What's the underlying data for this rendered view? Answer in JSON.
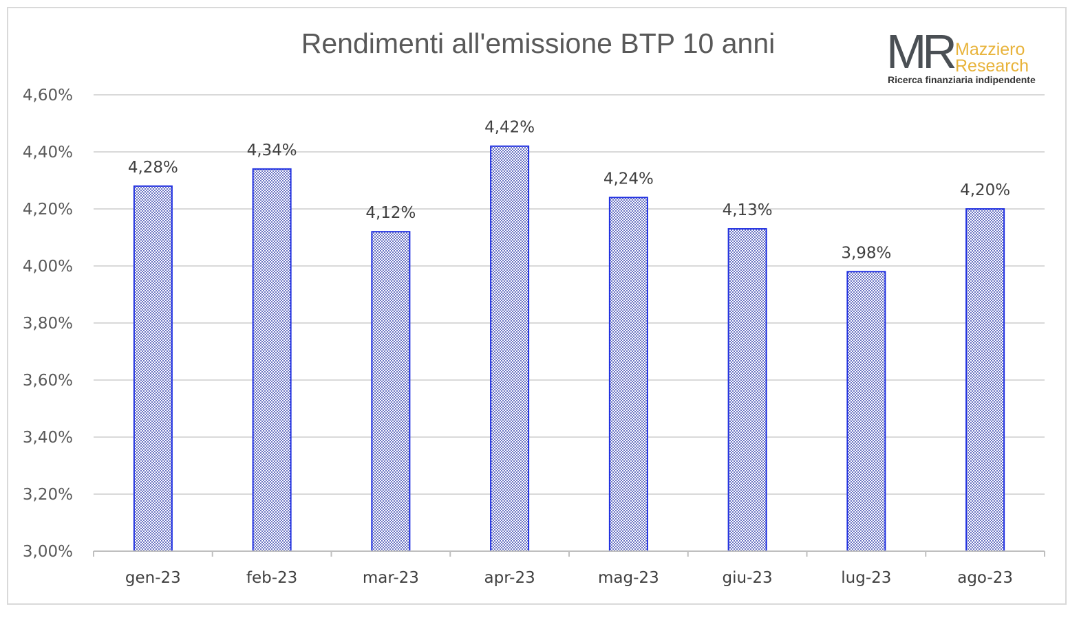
{
  "chart_data": {
    "type": "bar",
    "title": "Rendimenti all'emissione BTP 10 anni",
    "categories": [
      "gen-23",
      "feb-23",
      "mar-23",
      "apr-23",
      "mag-23",
      "giu-23",
      "lug-23",
      "ago-23"
    ],
    "values": [
      4.28,
      4.34,
      4.12,
      4.42,
      4.24,
      4.13,
      3.98,
      4.2
    ],
    "value_labels": [
      "4,28%",
      "4,34%",
      "4,12%",
      "4,42%",
      "4,24%",
      "4,13%",
      "3,98%",
      "4,20%"
    ],
    "ylim": [
      3.0,
      4.6
    ],
    "yticks": [
      3.0,
      3.2,
      3.4,
      3.6,
      3.8,
      4.0,
      4.2,
      4.4,
      4.6
    ],
    "ytick_labels": [
      "3,00%",
      "3,20%",
      "3,40%",
      "3,60%",
      "3,80%",
      "4,00%",
      "4,20%",
      "4,40%",
      "4,60%"
    ],
    "grid": true,
    "legend": false,
    "colors": {
      "bar_border": "#1f2fe0",
      "bar_fill": "#8c96d8",
      "grid": "#d9d9d9"
    }
  },
  "logo": {
    "mark": "MR",
    "brand_line1": "Mazziero",
    "brand_line2": "Research",
    "tagline": "Ricerca finanziaria indipendente"
  }
}
